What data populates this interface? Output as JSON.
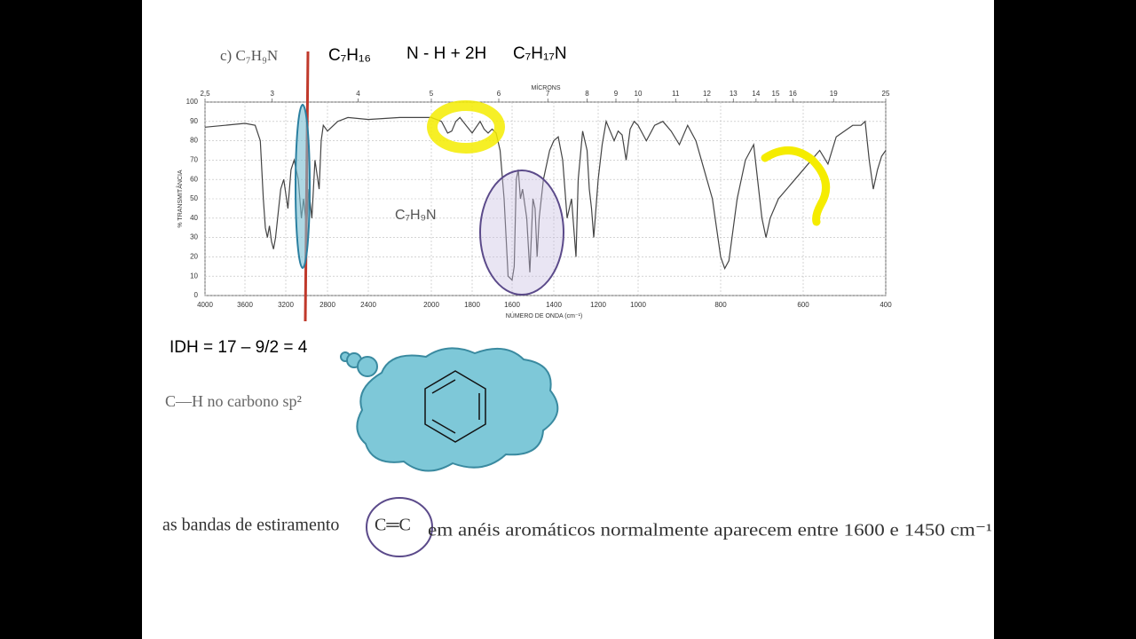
{
  "slide": {
    "formula_label": "c) C₇H₉N",
    "formula_1": "C₇H₁₆",
    "formula_2": "N - H + 2H",
    "formula_3": "C₇H₁₇N",
    "spectrum_label": "C₇H₉N",
    "idh": "IDH = 17 – 9/2 = 4",
    "ch_note": "C—H no carbono sp²",
    "band_note_1": "as bandas de estiramento",
    "band_note_2": "C═C",
    "band_note_3": "em anéis aromáticos normalmente aparecem entre 1600 e 1450 cm⁻¹"
  },
  "chart_data": {
    "type": "line",
    "title_top": "MÍCRONS",
    "y_label": "% TRANSMITÂNCIA",
    "x_label": "NÚMERO DE ONDA (cm⁻¹)",
    "xlim": [
      4000,
      400
    ],
    "xticks": [
      4000,
      3600,
      3200,
      2800,
      2400,
      2000,
      1800,
      1600,
      1400,
      1200,
      1000,
      800,
      600,
      400
    ],
    "x2ticks": [
      {
        "value": 2.5,
        "label": "2,5"
      },
      3,
      4,
      5,
      6,
      7,
      8,
      9,
      10,
      11,
      12,
      13,
      14,
      15,
      16,
      19,
      25
    ],
    "ylim": [
      0,
      100
    ],
    "yticks": [
      0,
      10,
      20,
      30,
      40,
      50,
      60,
      70,
      80,
      90,
      100
    ],
    "grid": true,
    "x": [
      4000,
      3800,
      3600,
      3500,
      3450,
      3420,
      3400,
      3380,
      3360,
      3340,
      3320,
      3300,
      3250,
      3220,
      3180,
      3150,
      3120,
      3080,
      3050,
      3030,
      3000,
      2980,
      2950,
      2920,
      2880,
      2860,
      2840,
      2800,
      2700,
      2600,
      2400,
      2200,
      2100,
      2000,
      1950,
      1920,
      1900,
      1880,
      1860,
      1830,
      1800,
      1780,
      1760,
      1740,
      1720,
      1700,
      1680,
      1660,
      1640,
      1620,
      1600,
      1590,
      1580,
      1570,
      1560,
      1550,
      1530,
      1515,
      1500,
      1490,
      1480,
      1470,
      1450,
      1420,
      1400,
      1380,
      1360,
      1340,
      1320,
      1300,
      1290,
      1270,
      1250,
      1240,
      1230,
      1220,
      1200,
      1180,
      1160,
      1140,
      1120,
      1100,
      1080,
      1060,
      1040,
      1020,
      1000,
      980,
      960,
      940,
      920,
      900,
      880,
      860,
      840,
      820,
      800,
      790,
      780,
      760,
      740,
      720,
      700,
      690,
      680,
      660,
      640,
      620,
      600,
      580,
      560,
      540,
      520,
      500,
      480,
      460,
      450,
      440,
      430,
      420,
      410,
      400
    ],
    "series": [
      {
        "name": "C₇H₉N",
        "color": "#444444",
        "values": [
          87,
          88,
          89,
          88,
          80,
          50,
          35,
          30,
          36,
          28,
          24,
          30,
          55,
          60,
          45,
          65,
          70,
          60,
          40,
          50,
          35,
          55,
          40,
          70,
          55,
          80,
          88,
          85,
          90,
          92,
          91,
          92,
          92,
          92,
          90,
          84,
          85,
          90,
          92,
          88,
          84,
          87,
          90,
          86,
          84,
          86,
          84,
          75,
          50,
          10,
          8,
          15,
          60,
          65,
          50,
          55,
          40,
          12,
          50,
          45,
          20,
          40,
          60,
          75,
          80,
          82,
          70,
          40,
          50,
          20,
          60,
          85,
          75,
          55,
          45,
          30,
          60,
          78,
          90,
          85,
          80,
          85,
          83,
          70,
          86,
          90,
          88,
          80,
          88,
          90,
          85,
          78,
          88,
          80,
          65,
          50,
          20,
          14,
          18,
          50,
          70,
          78,
          40,
          30,
          40,
          50,
          55,
          60,
          65,
          70,
          75,
          68,
          82,
          85,
          88,
          88,
          90,
          70,
          55,
          65,
          72,
          75
        ]
      }
    ]
  }
}
